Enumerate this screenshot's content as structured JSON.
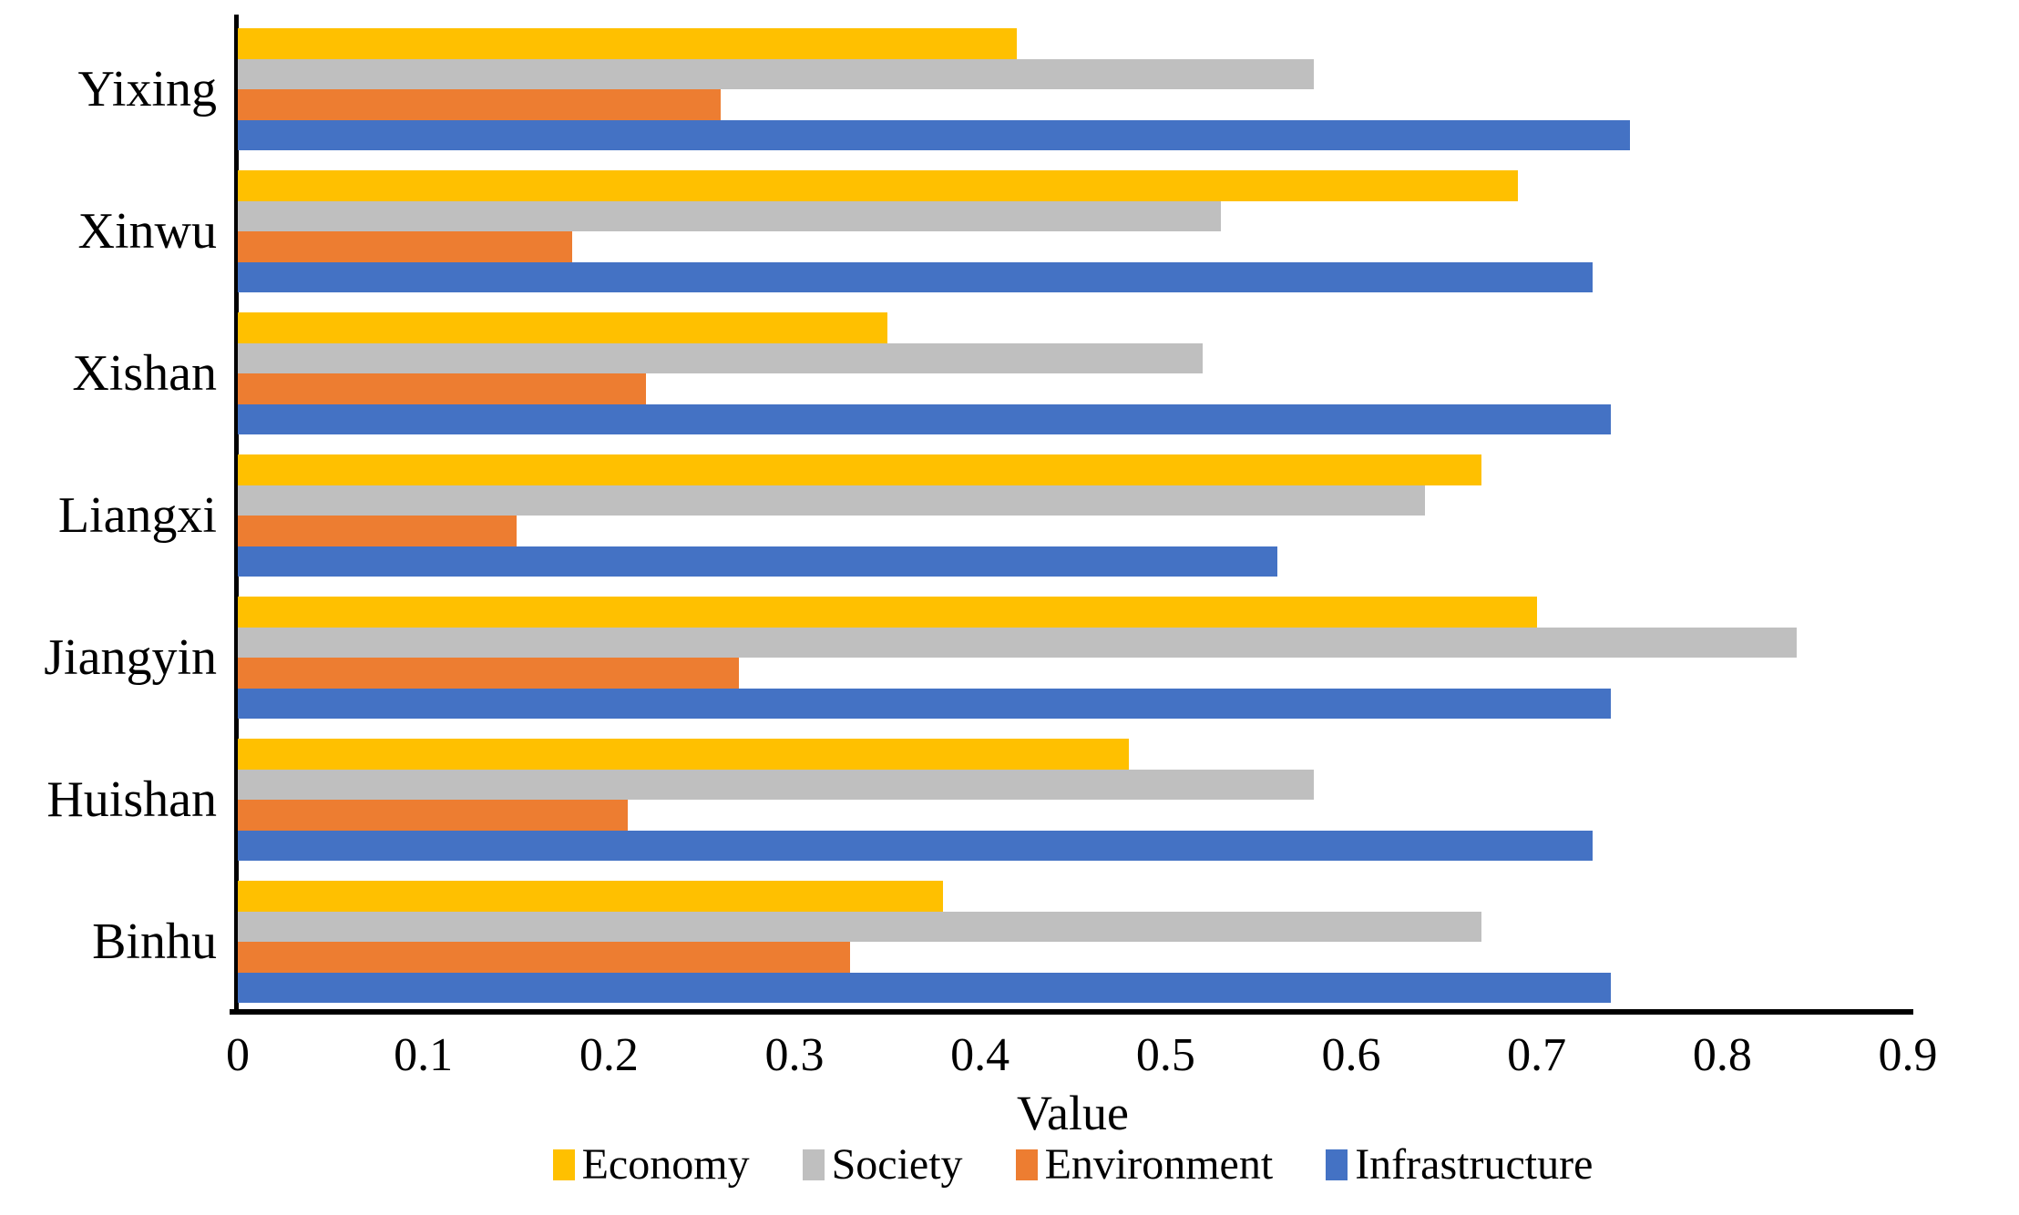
{
  "figure": {
    "background_color": "#ffffff",
    "axis_color": "#000000",
    "text_color": "#000000"
  },
  "chart_data": {
    "type": "bar",
    "orientation": "horizontal",
    "title": "",
    "xlabel": "Value",
    "ylabel": "",
    "xlim": [
      0,
      0.9
    ],
    "x_ticks": [
      0,
      0.1,
      0.2,
      0.3,
      0.4,
      0.5,
      0.6,
      0.7,
      0.8,
      0.9
    ],
    "x_tick_labels": [
      "0",
      "0.1",
      "0.2",
      "0.3",
      "0.4",
      "0.5",
      "0.6",
      "0.7",
      "0.8",
      "0.9"
    ],
    "grid": false,
    "legend_position": "bottom",
    "categories": [
      "Yixing",
      "Xinwu",
      "Xishan",
      "Liangxi",
      "Jiangyin",
      "Huishan",
      "Binhu"
    ],
    "series": [
      {
        "name": "Economy",
        "color": "#FFC000",
        "values": [
          0.42,
          0.69,
          0.35,
          0.67,
          0.7,
          0.48,
          0.38
        ]
      },
      {
        "name": "Society",
        "color": "#BFBFBF",
        "values": [
          0.58,
          0.53,
          0.52,
          0.64,
          0.84,
          0.58,
          0.67
        ]
      },
      {
        "name": "Environment",
        "color": "#ED7D31",
        "values": [
          0.26,
          0.18,
          0.22,
          0.15,
          0.27,
          0.21,
          0.33
        ]
      },
      {
        "name": "Infrastructure",
        "color": "#4472C4",
        "values": [
          0.75,
          0.73,
          0.74,
          0.56,
          0.74,
          0.73,
          0.74
        ]
      }
    ]
  }
}
